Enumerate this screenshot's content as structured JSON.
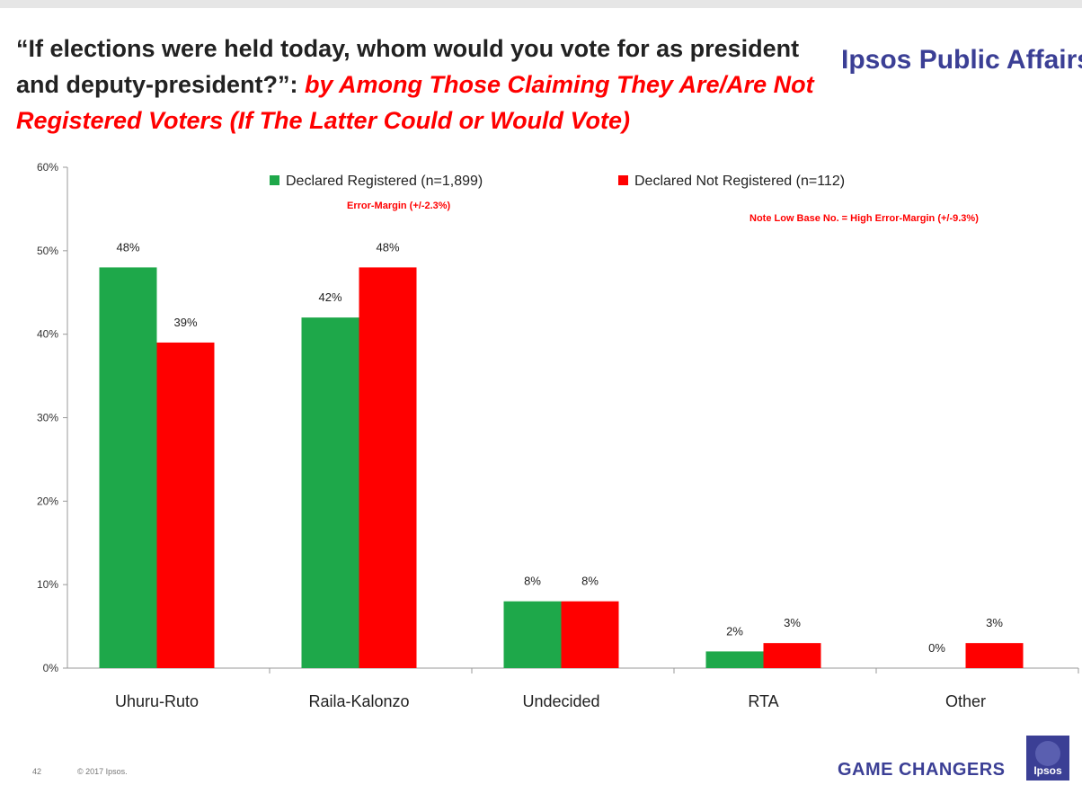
{
  "header": {
    "title_main": "“If elections were held today, whom would you vote for as president and deputy-president?”: ",
    "title_sub": "by Among Those Claiming They Are/Are Not Registered Voters (If The Latter Could or Would Vote)",
    "brand": "Ipsos Public Affairs"
  },
  "chart_data": {
    "type": "bar",
    "categories": [
      "Uhuru-Ruto",
      "Raila-Kalonzo",
      "Undecided",
      "RTA",
      "Other"
    ],
    "series": [
      {
        "name": "Declared Registered (n=1,899)",
        "color": "#1ea84a",
        "values": [
          48,
          42,
          8,
          2,
          0
        ],
        "labels": [
          "48%",
          "42%",
          "8%",
          "2%",
          "0%"
        ]
      },
      {
        "name": "Declared Not Registered (n=112)",
        "color": "#ff0000",
        "values": [
          39,
          48,
          8,
          3,
          3
        ],
        "labels": [
          "39%",
          "48%",
          "8%",
          "3%",
          "3%"
        ]
      }
    ],
    "ylim": [
      0,
      60
    ],
    "yticks": [
      0,
      10,
      20,
      30,
      40,
      50,
      60
    ],
    "ytick_labels": [
      "0%",
      "10%",
      "20%",
      "30%",
      "40%",
      "50%",
      "60%"
    ],
    "annotations": [
      "Error-Margin (+/-2.3%)",
      "Note Low Base No. = High Error-Margin (+/-9.3%)"
    ],
    "grid": false,
    "legend_position": "top"
  },
  "footer": {
    "page": "42",
    "copyright": "© 2017 Ipsos.",
    "tagline": "GAME CHANGERS",
    "logo": "Ipsos"
  }
}
